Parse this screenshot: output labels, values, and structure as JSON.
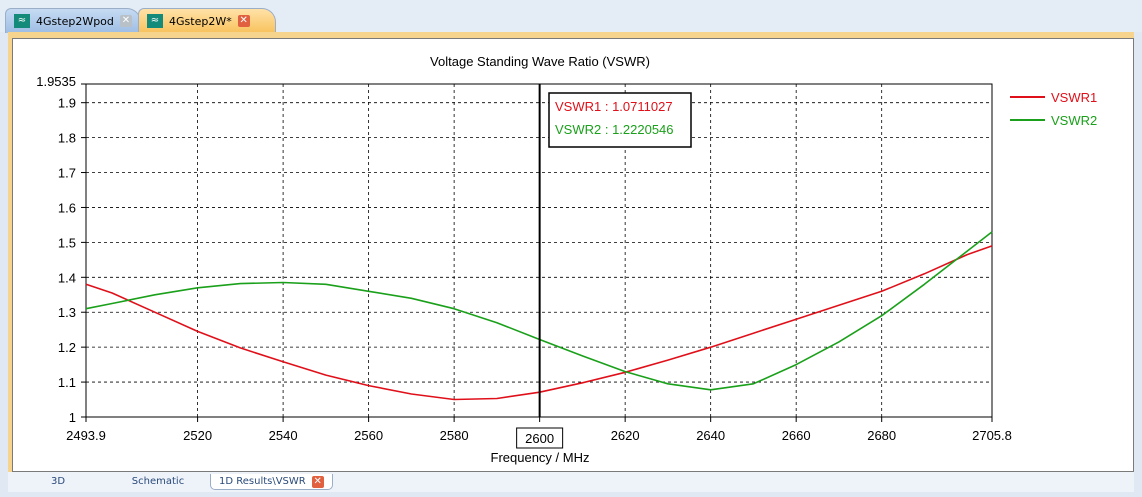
{
  "tabs": [
    {
      "label": "4Gstep2Wpod"
    },
    {
      "label": "4Gstep2W*"
    }
  ],
  "bottom_tabs": [
    {
      "label": "3D"
    },
    {
      "label": "Schematic"
    },
    {
      "label": "1D Results\\VSWR"
    }
  ],
  "chart_data": {
    "type": "line",
    "title": "Voltage Standing Wave Ratio (VSWR)",
    "xlabel": "Frequency / MHz",
    "ylabel": "",
    "xlim": [
      2493.9,
      2705.8
    ],
    "ylim": [
      1,
      1.9535
    ],
    "xticks": [
      "2493.9",
      "2520",
      "2540",
      "2560",
      "2580",
      "2600",
      "2620",
      "2640",
      "2660",
      "2680",
      "2705.8"
    ],
    "xtick_values": [
      2493.9,
      2520,
      2540,
      2560,
      2580,
      2600,
      2620,
      2640,
      2660,
      2680,
      2705.8
    ],
    "yticks": [
      "1",
      "1.1",
      "1.2",
      "1.3",
      "1.4",
      "1.5",
      "1.6",
      "1.7",
      "1.8",
      "1.9",
      "1.9535"
    ],
    "ytick_values": [
      1,
      1.1,
      1.2,
      1.3,
      1.4,
      1.5,
      1.6,
      1.7,
      1.8,
      1.9,
      1.9535
    ],
    "grid": true,
    "legend": "right",
    "marker_x": 2600,
    "marker_label": "2600",
    "marker_readout": [
      "VSWR1 : 1.0711027",
      "VSWR2 : 1.2220546"
    ],
    "series": [
      {
        "name": "VSWR1",
        "color": "#e0101a",
        "x": [
          2493.9,
          2500,
          2510,
          2520,
          2530,
          2540,
          2550,
          2560,
          2570,
          2580,
          2590,
          2600,
          2610,
          2620,
          2630,
          2640,
          2650,
          2660,
          2670,
          2680,
          2690,
          2700,
          2705.8
        ],
        "y": [
          1.38,
          1.355,
          1.3,
          1.245,
          1.198,
          1.158,
          1.12,
          1.09,
          1.066,
          1.05,
          1.053,
          1.071,
          1.098,
          1.128,
          1.163,
          1.2,
          1.24,
          1.28,
          1.32,
          1.36,
          1.41,
          1.465,
          1.49
        ]
      },
      {
        "name": "VSWR2",
        "color": "#1aa01a",
        "x": [
          2493.9,
          2500,
          2510,
          2520,
          2530,
          2540,
          2550,
          2560,
          2570,
          2580,
          2590,
          2600,
          2610,
          2620,
          2630,
          2640,
          2650,
          2660,
          2670,
          2680,
          2690,
          2700,
          2705.8
        ],
        "y": [
          1.31,
          1.325,
          1.35,
          1.37,
          1.382,
          1.385,
          1.38,
          1.36,
          1.34,
          1.31,
          1.27,
          1.222,
          1.175,
          1.13,
          1.095,
          1.078,
          1.095,
          1.15,
          1.215,
          1.29,
          1.38,
          1.475,
          1.53
        ]
      }
    ]
  }
}
